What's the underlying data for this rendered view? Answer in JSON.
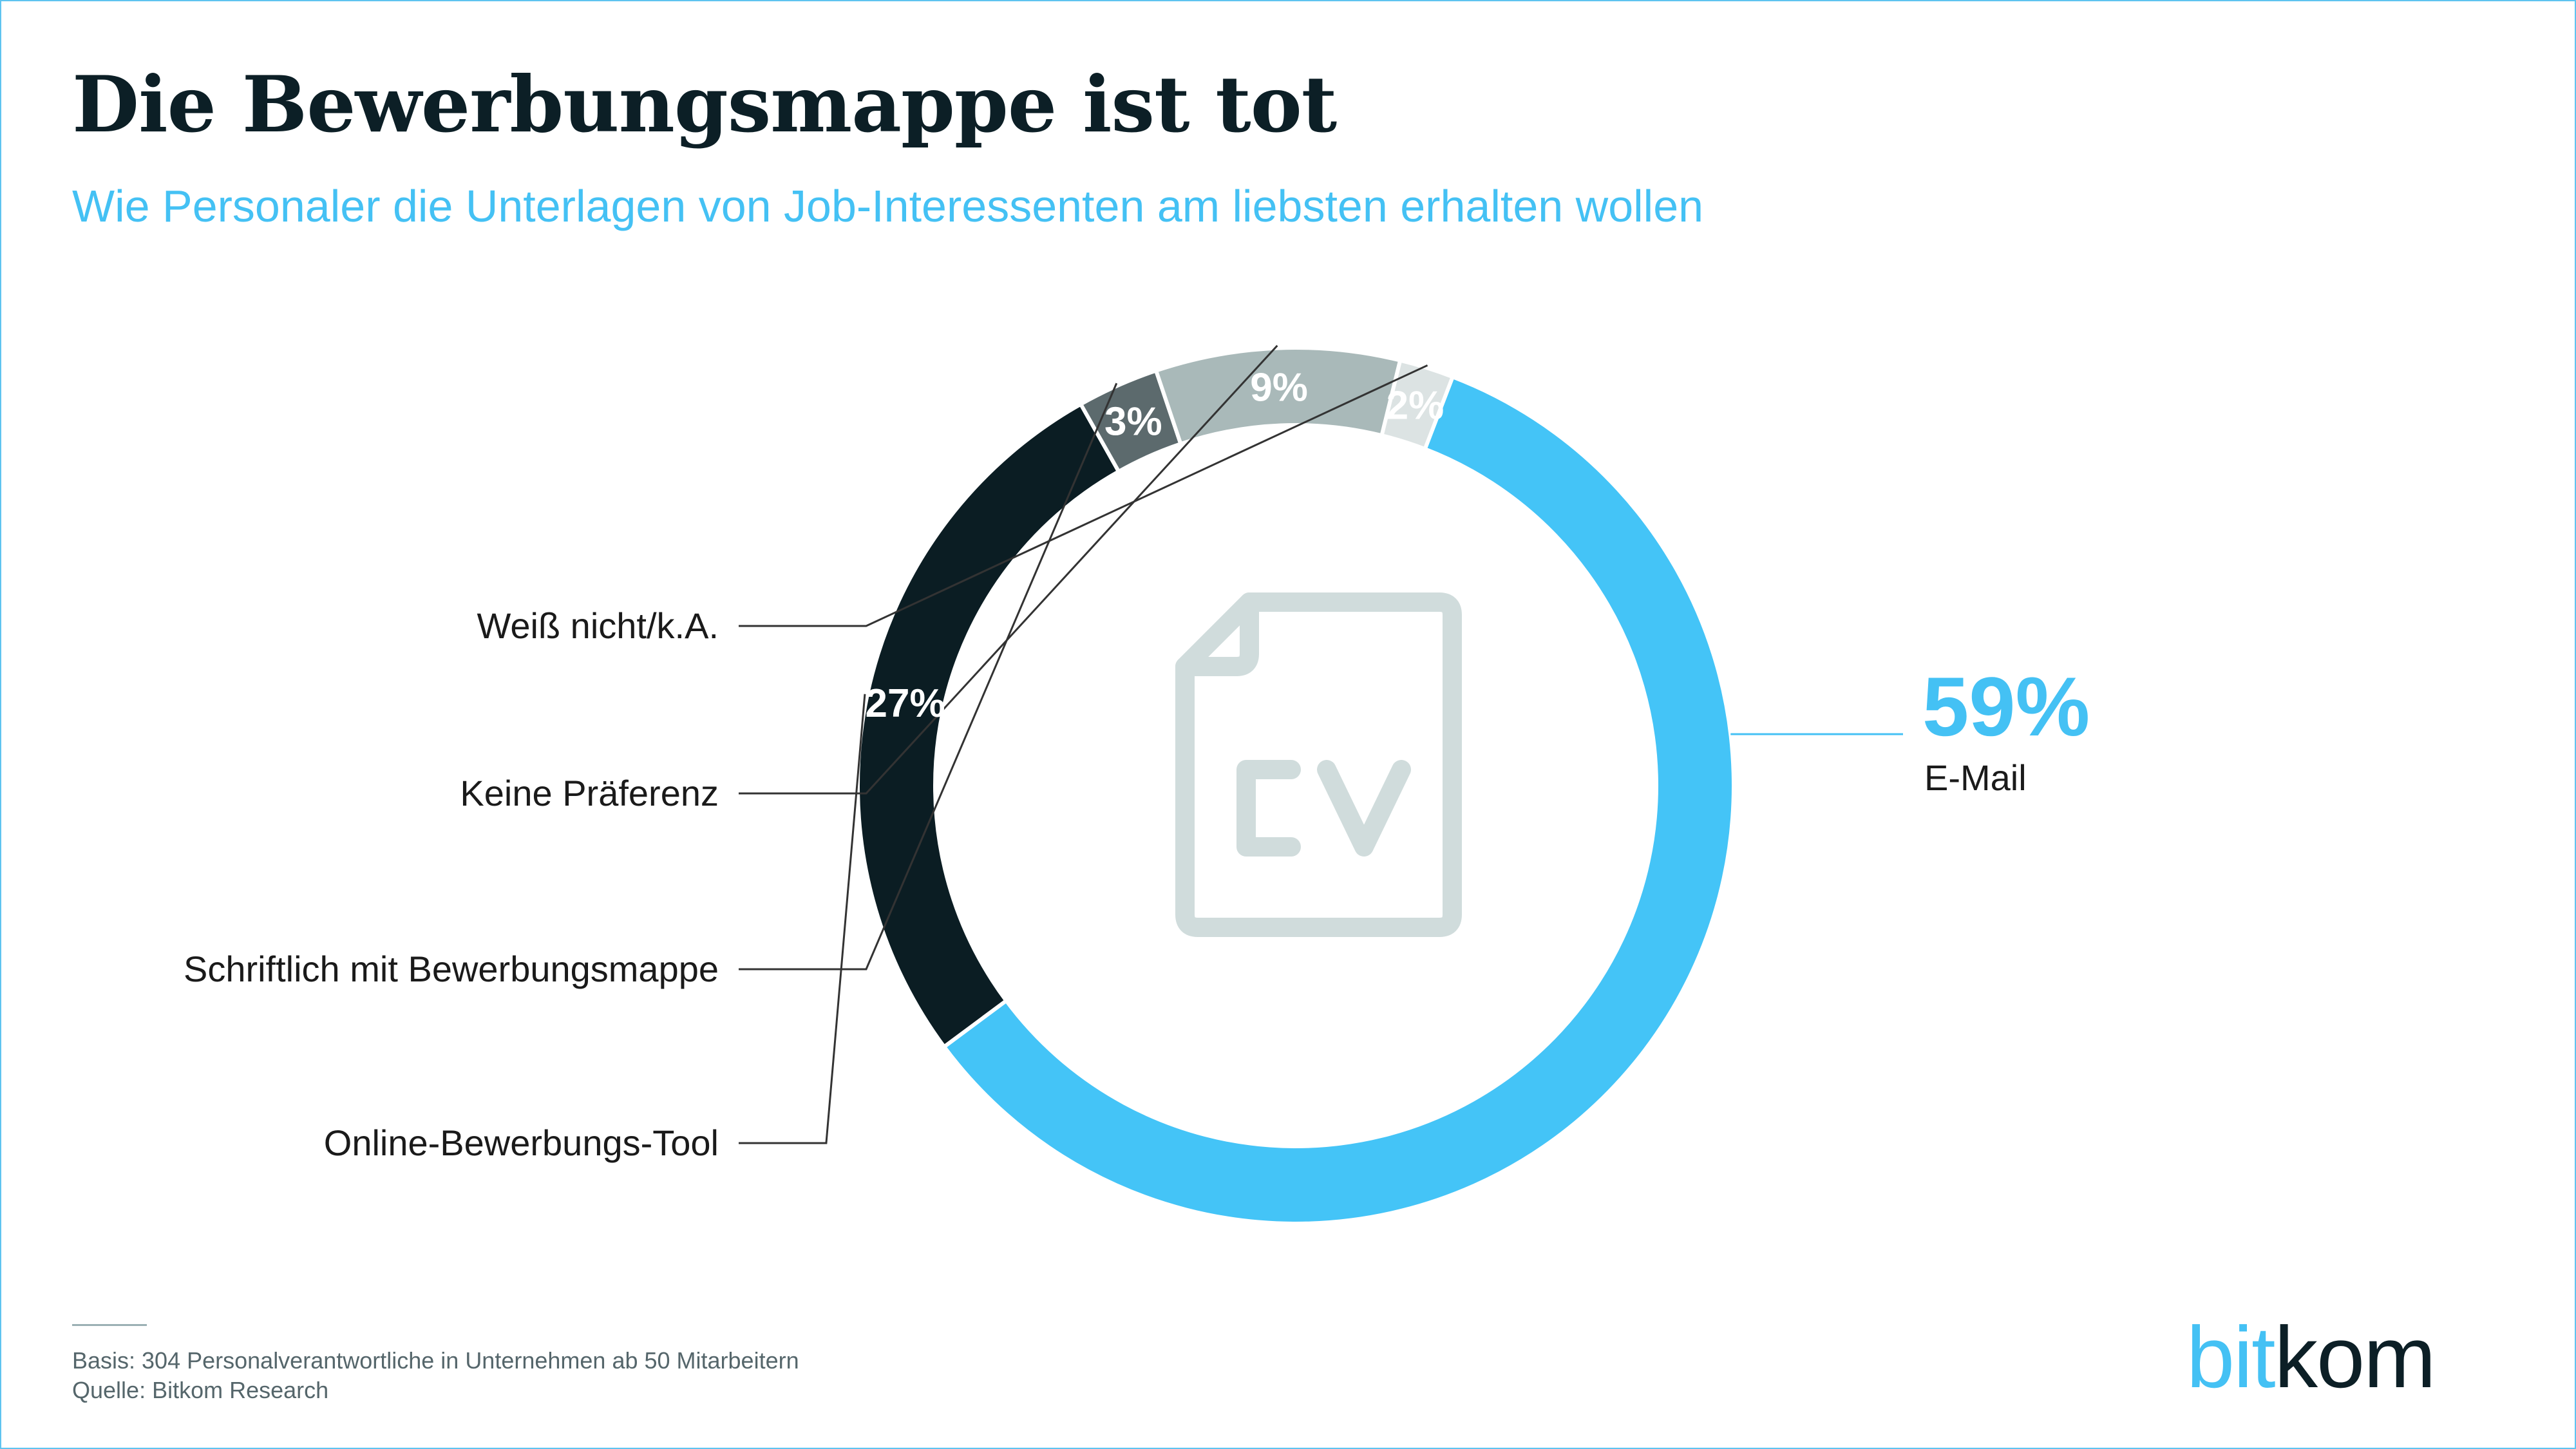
{
  "header": {
    "title": "Die Bewerbungsmappe ist tot",
    "subtitle": "Wie Personaler die Unterlagen von Job-Interessenten am liebsten erhalten wollen"
  },
  "chart_data": {
    "type": "pie",
    "variant": "donut",
    "categories": [
      "E-Mail",
      "Online-Bewerbungs-Tool",
      "Schriftlich mit Bewerbungsmappe",
      "Keine Präferenz",
      "Weiß nicht/k.A."
    ],
    "values": [
      59,
      27,
      3,
      9,
      2
    ],
    "value_labels": [
      "59%",
      "27%",
      "3%",
      "9%",
      "2%"
    ],
    "colors": [
      "#44c4f7",
      "#0b1d23",
      "#5c6a6d",
      "#a9b9b9",
      "#dce3e3"
    ],
    "center_icon": "cv-document-icon"
  },
  "footer": {
    "basis": "Basis: 304 Personalverantwortliche in Unternehmen ab 50 Mitarbeitern",
    "source": "Quelle: Bitkom Research"
  },
  "logo": {
    "part1": "bit",
    "part2": "kom"
  }
}
